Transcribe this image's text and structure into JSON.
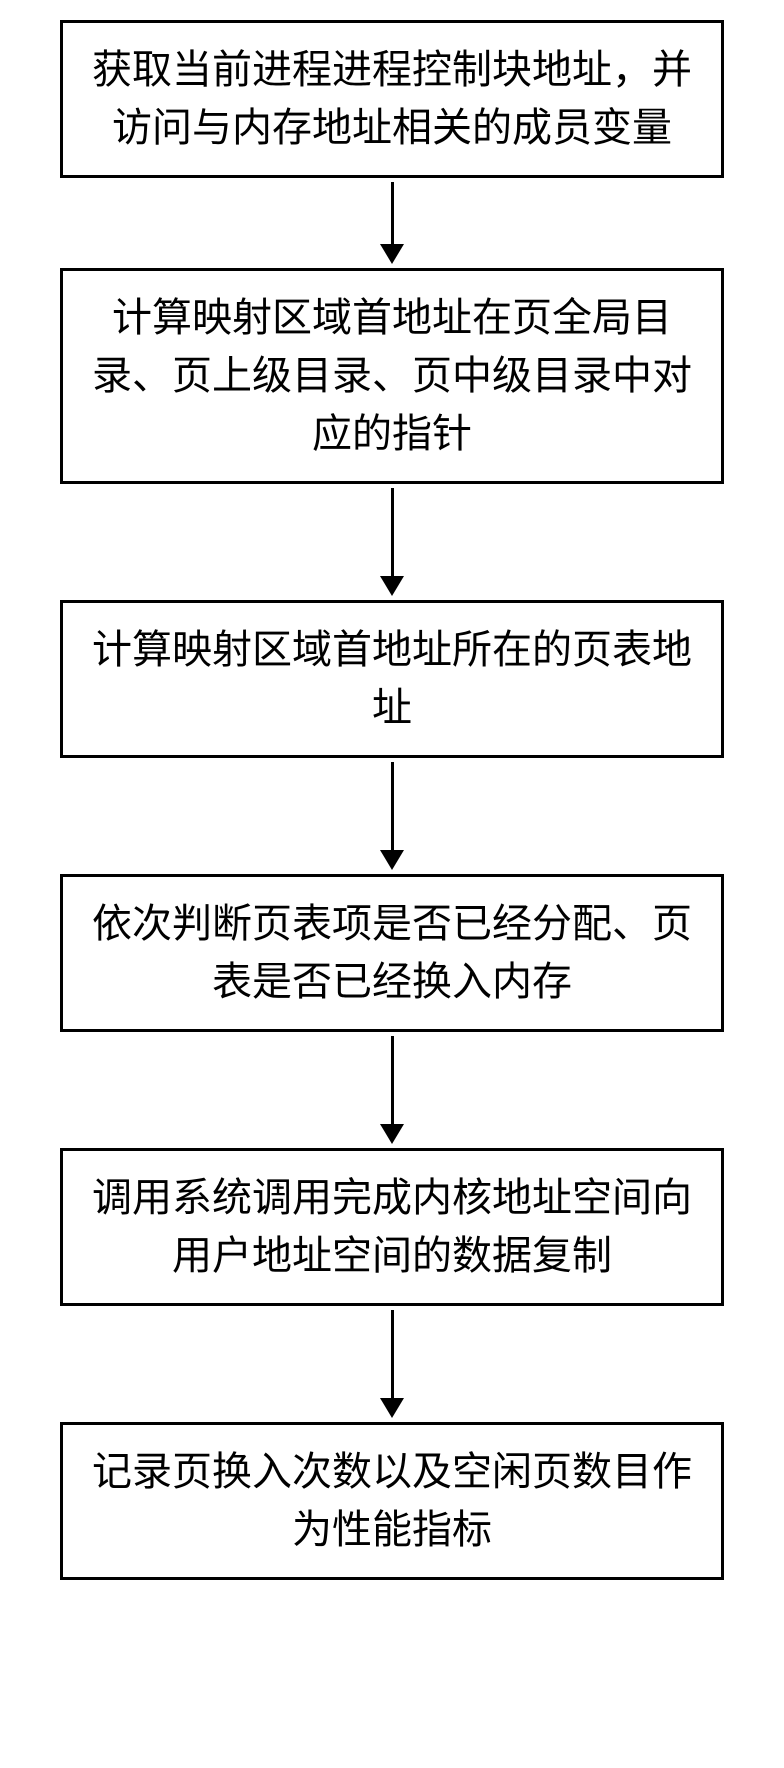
{
  "flowchart": {
    "type": "flowchart",
    "direction": "vertical",
    "node_border_color": "#000000",
    "node_border_width": 3,
    "node_background": "#ffffff",
    "text_color": "#000000",
    "font_size_pt": 30,
    "arrow_color": "#000000",
    "arrow_line_width": 3,
    "nodes": [
      {
        "id": "n1",
        "text": "获取当前进程进程控制块地址，并访问与内存地址相关的成员变量",
        "arrow_length": 62
      },
      {
        "id": "n2",
        "text": "计算映射区域首地址在页全局目录、页上级目录、页中级目录中对应的指针",
        "arrow_length": 88
      },
      {
        "id": "n3",
        "text": "计算映射区域首地址所在的页表地址",
        "arrow_length": 88
      },
      {
        "id": "n4",
        "text": "依次判断页表项是否已经分配、页表是否已经换入内存",
        "arrow_length": 88
      },
      {
        "id": "n5",
        "text": "调用系统调用完成内核地址空间向用户地址空间的数据复制",
        "arrow_length": 88
      },
      {
        "id": "n6",
        "text": "记录页换入次数以及空闲页数目作为性能指标",
        "arrow_length": 0
      }
    ]
  }
}
